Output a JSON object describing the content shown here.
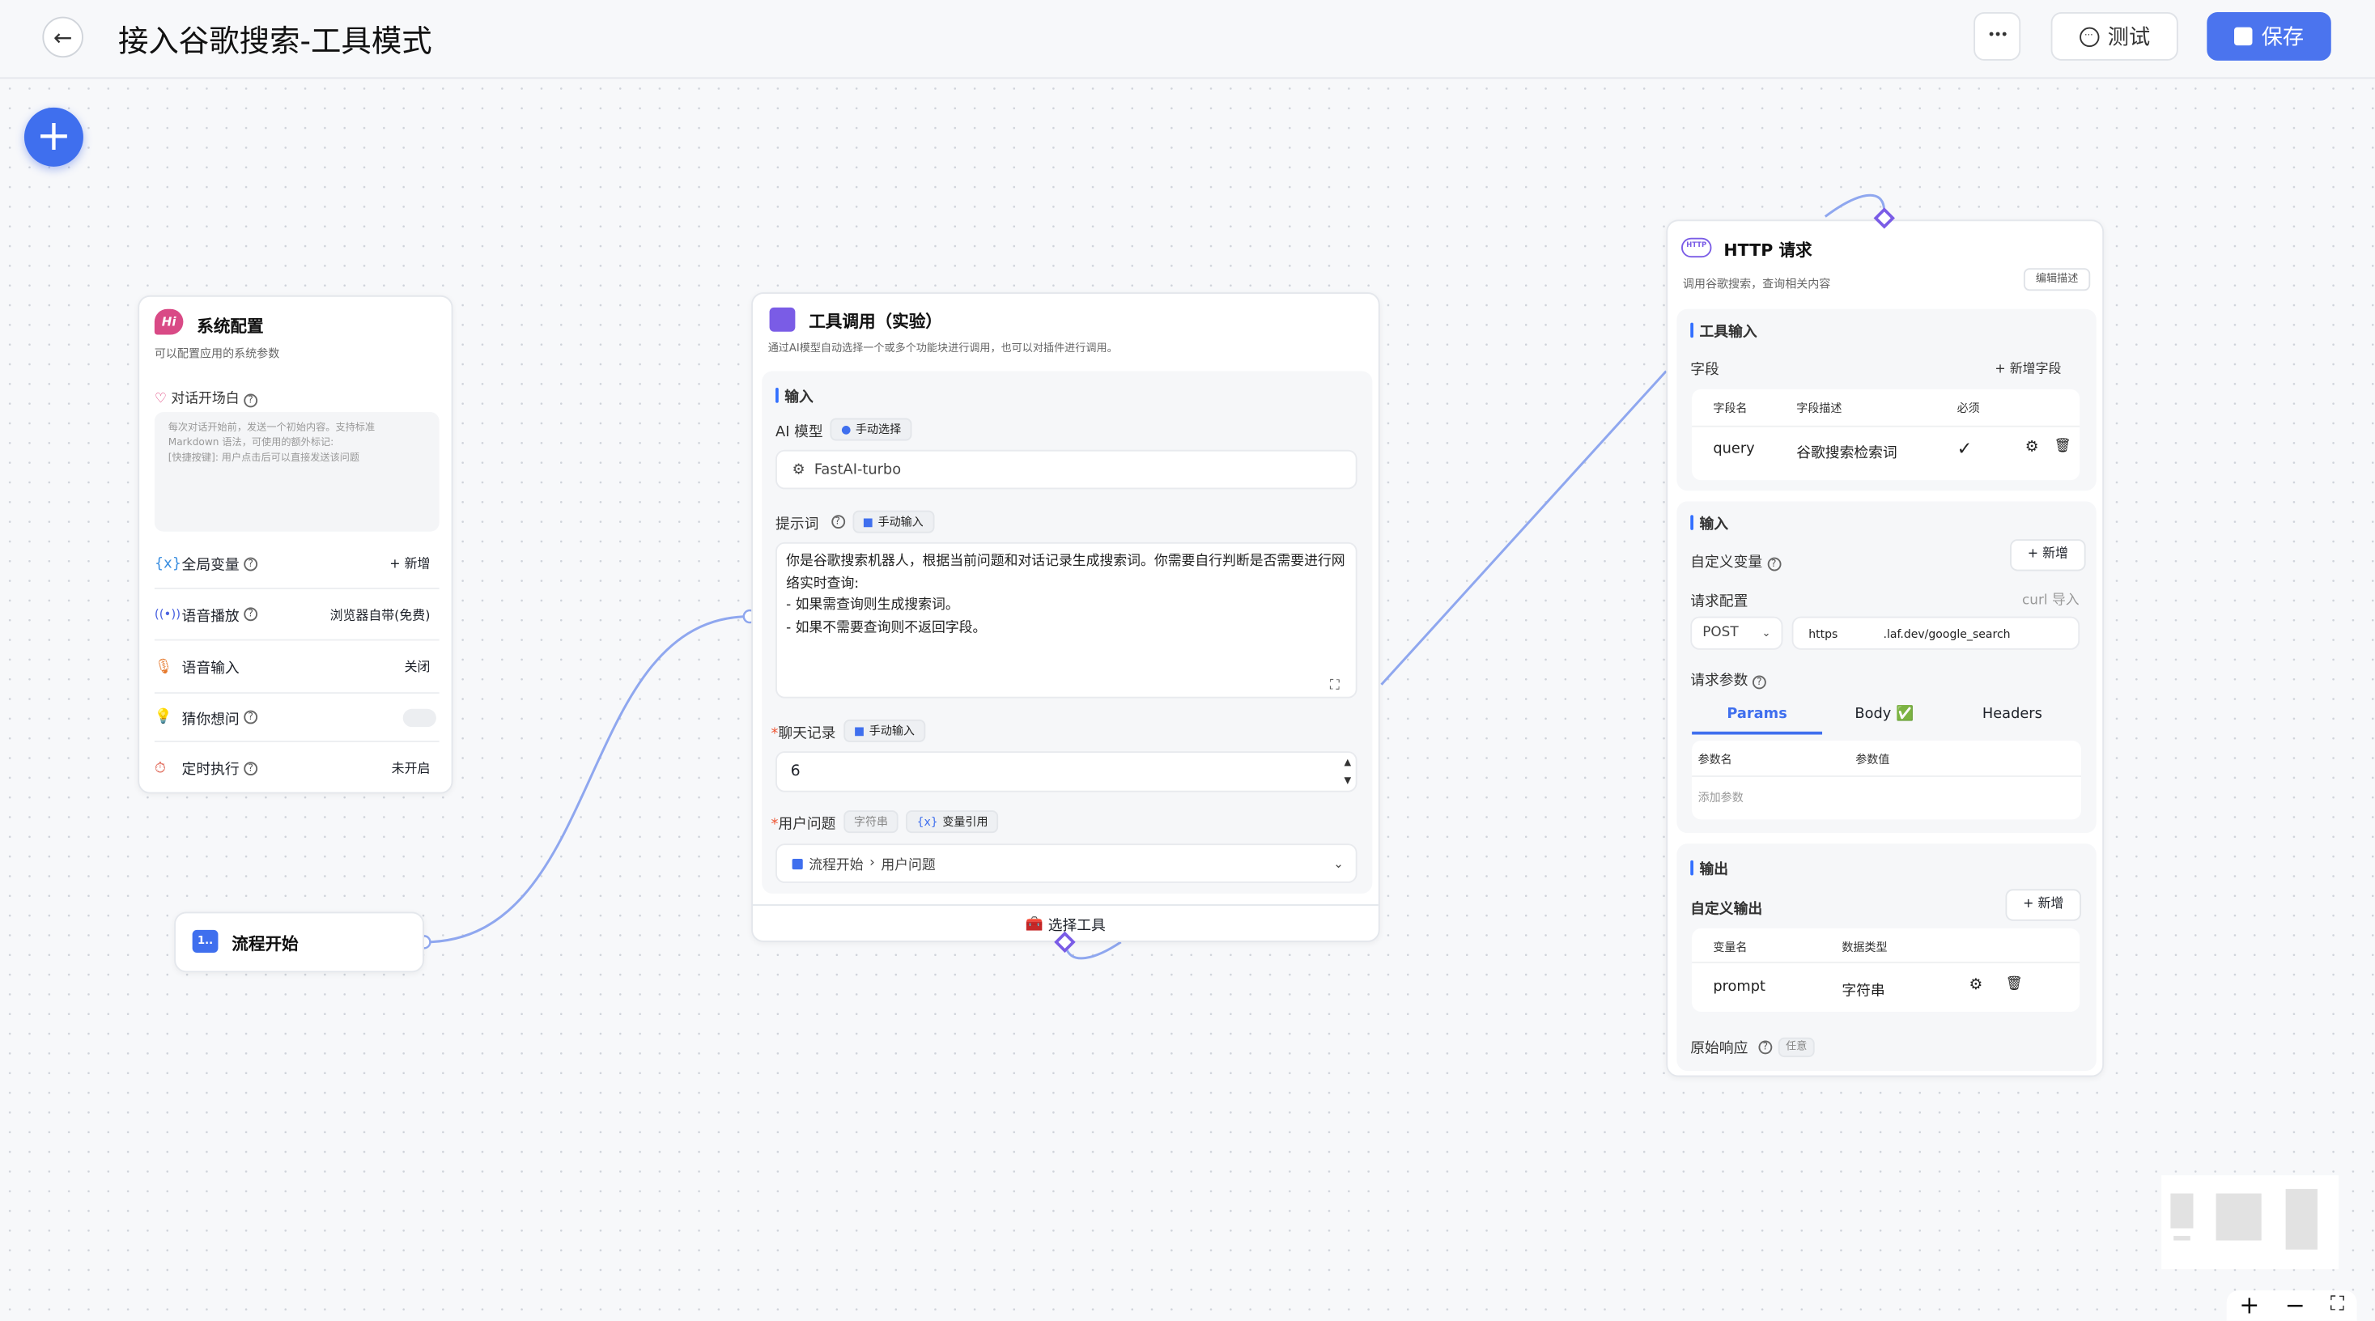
{
  "header": {
    "title": "接入谷歌搜索-工具模式",
    "more_label": "•••",
    "test_label": "测试",
    "save_label": "保存",
    "accent": "#4b74ee"
  },
  "system_node": {
    "title": "系统配置",
    "icon_text": "Hi",
    "desc": "可以配置应用的系统参数",
    "welcome_label": "对话开场白",
    "welcome_placeholder": "每次对话开始前，发送一个初始内容。支持标准 Markdown 语法，可使用的额外标记:\n[快捷按键]: 用户点击后可以直接发送该问题",
    "items": [
      {
        "label": "全局变量",
        "value": "+ 新增"
      },
      {
        "label": "语音播放",
        "value": "浏览器自带(免费)"
      },
      {
        "label": "语音输入",
        "value": "关闭"
      },
      {
        "label": "猜你想问",
        "value": ""
      },
      {
        "label": "定时执行",
        "value": "未开启"
      }
    ],
    "guess_toggle_on": false
  },
  "start_node": {
    "title": "流程开始",
    "icon_text": "1.."
  },
  "tool_node": {
    "title": "工具调用（实验）",
    "desc": "通过AI模型自动选择一个或多个功能块进行调用，也可以对插件进行调用。",
    "input_section": "输入",
    "model_label": "AI 模型",
    "model_mode": "手动选择",
    "model_value": "FastAI-turbo",
    "prompt_label": "提示词",
    "prompt_mode": "手动输入",
    "prompt_value": "你是谷歌搜索机器人，根据当前问题和对话记录生成搜索词。你需要自行判断是否需要进行网络实时查询:\n- 如果需查询则生成搜索词。\n- 如果不需要查询则不返回字段。",
    "history_label": "聊天记录",
    "history_mode": "手动输入",
    "history_value": "6",
    "question_label": "用户问题",
    "question_type": "字符串",
    "question_mode": "变量引用",
    "question_ref_node": "流程开始",
    "question_ref_field": "用户问题",
    "select_tool": "选择工具"
  },
  "http_node": {
    "title": "HTTP 请求",
    "icon_text": "HTTP",
    "desc": "调用谷歌搜索，查询相关内容",
    "edit_desc": "编辑描述",
    "tool_input": {
      "section": "工具输入",
      "fields_label": "字段",
      "add_field": "+ 新增字段",
      "columns": [
        "字段名",
        "字段描述",
        "必须"
      ],
      "rows": [
        {
          "name": "query",
          "desc": "谷歌搜索检索词",
          "required": "✓"
        }
      ]
    },
    "input": {
      "section": "输入",
      "custom_var": "自定义变量",
      "add": "+ 新增",
      "req_config": "请求配置",
      "curl": "curl 导入",
      "method": "POST",
      "url_prefix": "https",
      "url_suffix": ".laf.dev/google_search",
      "req_params": "请求参数",
      "tabs": [
        "Params",
        "Body ✅",
        "Headers"
      ],
      "active_tab": "Params",
      "param_columns": [
        "参数名",
        "参数值"
      ],
      "add_param": "添加参数"
    },
    "output": {
      "section": "输出",
      "custom_output": "自定义输出",
      "add": "+ 新增",
      "columns": [
        "变量名",
        "数据类型"
      ],
      "rows": [
        {
          "name": "prompt",
          "type": "字符串"
        }
      ],
      "raw_label": "原始响应",
      "raw_type": "任意"
    }
  },
  "controls": {
    "zoom_in": "+",
    "zoom_out": "−",
    "fit": "⛶"
  }
}
